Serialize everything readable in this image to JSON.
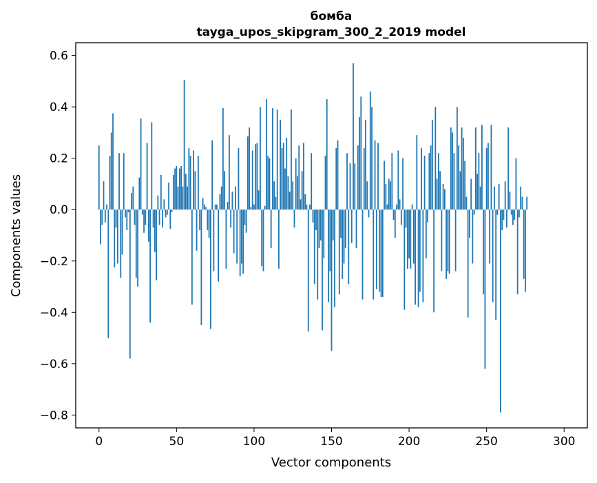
{
  "chart_data": {
    "type": "bar",
    "title": "бомба",
    "subtitle": "tayga_upos_skipgram_300_2_2019 model",
    "xlabel": "Vector components",
    "ylabel": "Components values",
    "xlim": [
      -15,
      315
    ],
    "ylim": [
      -0.85,
      0.65
    ],
    "xticks": [
      0,
      50,
      100,
      150,
      200,
      250,
      300
    ],
    "yticks": [
      -0.8,
      -0.6,
      -0.4,
      -0.2,
      0.0,
      0.2,
      0.4,
      0.6
    ],
    "xtick_labels": [
      "0",
      "50",
      "100",
      "150",
      "200",
      "250",
      "300"
    ],
    "ytick_labels": [
      "−0.8",
      "−0.6",
      "−0.4",
      "−0.2",
      "0.0",
      "0.2",
      "0.4",
      "0.6"
    ],
    "bar_color": "#1f77b4",
    "values": [
      0.25,
      -0.135,
      -0.06,
      0.11,
      -0.05,
      0.02,
      -0.5,
      0.21,
      0.3,
      0.375,
      -0.225,
      -0.07,
      -0.21,
      0.22,
      -0.265,
      -0.175,
      0.22,
      -0.03,
      -0.08,
      -0.01,
      -0.58,
      0.065,
      0.09,
      -0.06,
      -0.265,
      -0.3,
      0.125,
      0.355,
      -0.02,
      -0.09,
      -0.06,
      0.26,
      -0.125,
      -0.44,
      0.34,
      -0.07,
      -0.165,
      -0.275,
      0.055,
      -0.06,
      0.135,
      -0.07,
      0.04,
      -0.03,
      -0.02,
      0.105,
      -0.075,
      -0.01,
      0.135,
      0.16,
      0.17,
      0.09,
      0.16,
      0.17,
      0.09,
      0.505,
      0.14,
      0.09,
      0.24,
      0.21,
      -0.37,
      0.23,
      0.15,
      -0.16,
      0.21,
      -0.08,
      -0.45,
      0.045,
      0.02,
      0.01,
      -0.08,
      -0.11,
      -0.465,
      0.27,
      -0.24,
      0.02,
      0.02,
      -0.28,
      0.06,
      0.09,
      0.395,
      0.15,
      -0.23,
      0.03,
      0.29,
      -0.07,
      0.07,
      -0.17,
      0.09,
      -0.21,
      0.24,
      -0.26,
      -0.21,
      -0.25,
      -0.06,
      -0.09,
      0.285,
      0.32,
      0.01,
      0.23,
      0.02,
      0.255,
      0.26,
      0.075,
      0.4,
      -0.22,
      -0.24,
      0.015,
      0.43,
      0.21,
      0.2,
      -0.15,
      0.395,
      0.11,
      0.05,
      0.39,
      -0.23,
      0.35,
      0.24,
      0.26,
      0.16,
      0.28,
      0.13,
      0.07,
      0.39,
      0.11,
      -0.07,
      0.2,
      0.13,
      0.25,
      0.04,
      0.15,
      0.26,
      0.06,
      0.02,
      -0.475,
      0.02,
      0.22,
      -0.05,
      -0.29,
      -0.08,
      -0.35,
      -0.15,
      -0.12,
      -0.47,
      -0.19,
      0.21,
      0.43,
      -0.36,
      -0.24,
      -0.55,
      -0.12,
      -0.38,
      0.24,
      0.27,
      -0.33,
      -0.11,
      -0.27,
      -0.21,
      -0.15,
      0.22,
      -0.29,
      0.18,
      -0.13,
      0.57,
      0.18,
      -0.15,
      0.25,
      0.36,
      0.44,
      -0.35,
      0.24,
      0.35,
      0.11,
      -0.03,
      0.46,
      0.4,
      -0.35,
      0.27,
      -0.31,
      0.26,
      -0.32,
      -0.34,
      -0.34,
      0.19,
      0.1,
      0.02,
      0.12,
      0.11,
      0.22,
      -0.04,
      -0.11,
      0.02,
      0.23,
      0.04,
      -0.06,
      0.2,
      -0.39,
      -0.07,
      -0.23,
      -0.19,
      -0.23,
      0.02,
      -0.21,
      -0.37,
      0.29,
      -0.38,
      -0.32,
      0.24,
      -0.36,
      0.21,
      -0.19,
      -0.05,
      0.22,
      0.25,
      0.35,
      -0.4,
      0.4,
      0.12,
      0.22,
      0.15,
      -0.24,
      0.1,
      0.08,
      -0.27,
      -0.24,
      -0.25,
      0.32,
      0.3,
      0.22,
      -0.24,
      0.4,
      0.25,
      0.15,
      0.32,
      0.28,
      0.19,
      0.05,
      -0.42,
      -0.11,
      0.12,
      -0.21,
      -0.02,
      0.32,
      0.14,
      0.22,
      0.09,
      0.33,
      -0.33,
      -0.62,
      0.24,
      0.26,
      -0.21,
      0.33,
      -0.36,
      0.09,
      -0.43,
      -0.02,
      0.1,
      -0.79,
      -0.08,
      -0.04,
      0.11,
      -0.07,
      0.32,
      0.07,
      -0.02,
      -0.06,
      -0.04,
      0.2,
      -0.33,
      -0.03,
      0.09,
      0.05,
      -0.27,
      -0.32,
      0.05
    ]
  }
}
